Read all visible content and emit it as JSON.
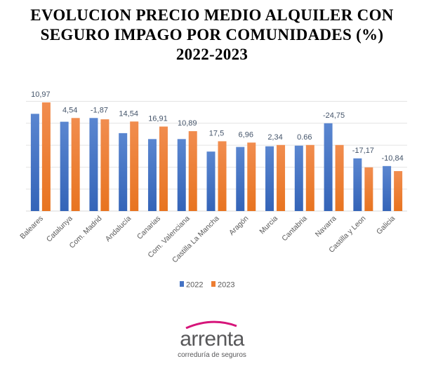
{
  "title_lines": [
    "EVOLUCION PRECIO MEDIO ALQUILER CON",
    "SEGURO IMPAGO POR COMUNIDADES (%)",
    "2022-2023"
  ],
  "chart_data": {
    "type": "bar",
    "title": "EVOLUCION PRECIO MEDIO ALQUILER CON SEGURO IMPAGO POR COMUNIDADES (%) 2022-2023",
    "xlabel": "",
    "ylabel": "",
    "y_unit_note_values_are_relative_gridline_units": true,
    "ylim": [
      0,
      5
    ],
    "grid": true,
    "legend_position": "bottom",
    "categories": [
      "Baleares",
      "Catalunya",
      "Com. Madrid",
      "Andalucía",
      "Canarias",
      "Com. Valenciana",
      "Castilla La Mancha",
      "Aragón",
      "Murcia",
      "Cantabria",
      "Navarra",
      "Castilla y Leon",
      "Galicia"
    ],
    "series": [
      {
        "name": "2022",
        "color": "#4472c4",
        "values": [
          4.43,
          4.07,
          4.24,
          3.55,
          3.28,
          3.28,
          2.71,
          2.92,
          2.95,
          2.98,
          4.0,
          2.4,
          2.05
        ]
      },
      {
        "name": "2023",
        "color": "#ed7d31",
        "values": [
          4.95,
          4.24,
          4.18,
          4.08,
          3.85,
          3.64,
          3.18,
          3.12,
          3.01,
          3.01,
          3.01,
          1.99,
          1.82
        ]
      }
    ],
    "data_labels": [
      "10,97",
      "4,54",
      "-1,87",
      "14,54",
      "16,91",
      "10,89",
      "17,5",
      "6,96",
      "2,34",
      "0.66",
      "-24,75",
      "-17,17",
      "-10,84"
    ]
  },
  "logo": {
    "name": "arrenta",
    "tagline": "correduría de seguros"
  }
}
